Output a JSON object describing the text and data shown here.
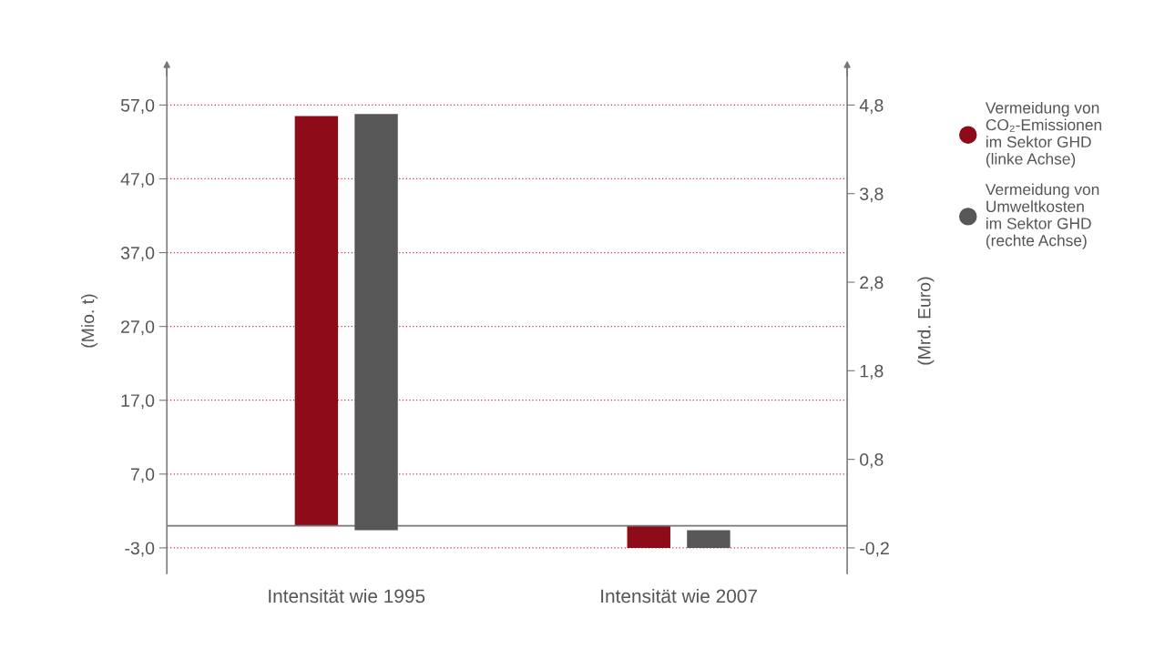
{
  "chart_data": {
    "type": "bar",
    "categories": [
      "Intensität wie 1995",
      "Intensität wie 2007"
    ],
    "series": [
      {
        "name": "Vermeidung von\nCO₂-Emissionen\nim Sektor GHD\n(linke Achse)",
        "color": "#8e0c1a",
        "values": [
          55.5,
          -3.0
        ]
      },
      {
        "name": "Vermeidung von\nUmweltkosten\nim Sektor GHD\n(rechte Achse)",
        "color": "#575757",
        "values": [
          4.7,
          -0.2
        ],
        "axis": "y2"
      }
    ],
    "ylabel": "(Mio. t)",
    "y2label": "(Mrd. Euro)",
    "ylim": [
      -6.5,
      62
    ],
    "yticks": [
      {
        "value": -3,
        "label": "-3,0"
      },
      {
        "value": 7,
        "label": "7,0"
      },
      {
        "value": 17,
        "label": "17,0"
      },
      {
        "value": 27,
        "label": "27,0"
      },
      {
        "value": 37,
        "label": "37,0"
      },
      {
        "value": 47,
        "label": "47,0"
      },
      {
        "value": 57,
        "label": "57,0"
      }
    ],
    "y2lim": [
      -0.4917,
      5.2167
    ],
    "y2ticks": [
      {
        "value": -0.2,
        "label": "-0,2"
      },
      {
        "value": 0.8,
        "label": "0,8"
      },
      {
        "value": 1.8,
        "label": "1,8"
      },
      {
        "value": 2.8,
        "label": "2,8"
      },
      {
        "value": 3.8,
        "label": "3,8"
      },
      {
        "value": 4.8,
        "label": "4,8"
      }
    ],
    "grid": "y",
    "legend": "right",
    "marker": "circle"
  }
}
